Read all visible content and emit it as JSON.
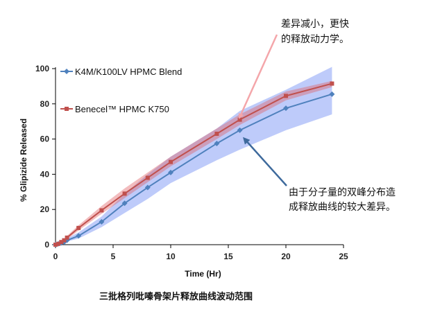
{
  "chart_data": {
    "type": "line",
    "title": "",
    "xlabel": "Time (Hr)",
    "ylabel": "% Glipizide Released",
    "xlim": [
      0,
      25
    ],
    "ylim": [
      0,
      100
    ],
    "xticks": [
      0,
      5,
      10,
      15,
      20,
      25
    ],
    "yticks": [
      0,
      20,
      40,
      60,
      80,
      100
    ],
    "grid": false,
    "legend_position": "top-left",
    "series": [
      {
        "name": "K4M/K100LV HPMC Blend",
        "color": "#4F81BD",
        "marker": "diamond",
        "x": [
          0,
          0.25,
          0.5,
          0.75,
          1,
          2,
          4,
          6,
          8,
          10,
          14,
          16,
          20,
          24
        ],
        "y": [
          0,
          0.5,
          1,
          1.5,
          2.5,
          5,
          13,
          23.5,
          32.5,
          41,
          57.5,
          65,
          77.5,
          85.5
        ],
        "band_lower": [
          0,
          0.3,
          0.6,
          1,
          1.8,
          3.5,
          10,
          18,
          26,
          35,
          48,
          54,
          65,
          74
        ],
        "band_upper": [
          0,
          1,
          2,
          2.5,
          3.5,
          7,
          16,
          29,
          40,
          50,
          66,
          76,
          88,
          101
        ]
      },
      {
        "name": "Benecel™ HPMC K750",
        "color": "#C0504D",
        "marker": "square",
        "x": [
          0,
          0.25,
          0.5,
          0.75,
          1,
          2,
          4,
          6,
          8,
          10,
          14,
          16,
          20,
          24
        ],
        "y": [
          0,
          0.5,
          1.5,
          2.5,
          4,
          9.5,
          19.5,
          29,
          38,
          47,
          63,
          71,
          84.5,
          91.5
        ],
        "band_lower": [
          0,
          0.3,
          1,
          1.8,
          3,
          8,
          17.5,
          26.5,
          35.5,
          44.5,
          60,
          68,
          82,
          89.5
        ],
        "band_upper": [
          0,
          0.8,
          2,
          3.2,
          5,
          11,
          22,
          32,
          41,
          50,
          66,
          74,
          87,
          93
        ]
      }
    ]
  },
  "annotations": {
    "top_note_line1": "差异减小，更快",
    "top_note_line2": "的释放动力学。",
    "right_note_line1": "由于分子量的双峰分布造",
    "right_note_line2": "成释放曲线的较大差异。",
    "caption": "三批格列吡嗪骨架片释放曲线波动范围"
  }
}
